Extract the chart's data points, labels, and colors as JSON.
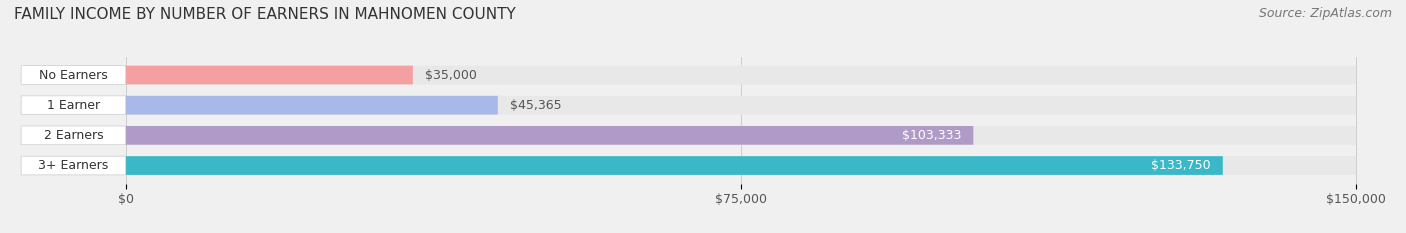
{
  "title": "FAMILY INCOME BY NUMBER OF EARNERS IN MAHNOMEN COUNTY",
  "source": "Source: ZipAtlas.com",
  "categories": [
    "No Earners",
    "1 Earner",
    "2 Earners",
    "3+ Earners"
  ],
  "values": [
    35000,
    45365,
    103333,
    133750
  ],
  "labels": [
    "$35,000",
    "$45,365",
    "$103,333",
    "$133,750"
  ],
  "bar_colors": [
    "#f4a0a0",
    "#a8b8e8",
    "#b09ac8",
    "#3ab8c8"
  ],
  "bar_edge_colors": [
    "#e07878",
    "#8898c8",
    "#9080b0",
    "#1898a8"
  ],
  "label_colors": [
    "#555555",
    "#555555",
    "#ffffff",
    "#ffffff"
  ],
  "xlim": [
    0,
    150000
  ],
  "xticks": [
    0,
    75000,
    150000
  ],
  "xticklabels": [
    "$0",
    "$75,000",
    "$150,000"
  ],
  "background_color": "#f0f0f0",
  "bar_bg_color": "#e8e8e8",
  "title_fontsize": 11,
  "source_fontsize": 9,
  "tick_fontsize": 9,
  "label_fontsize": 9,
  "category_fontsize": 9
}
